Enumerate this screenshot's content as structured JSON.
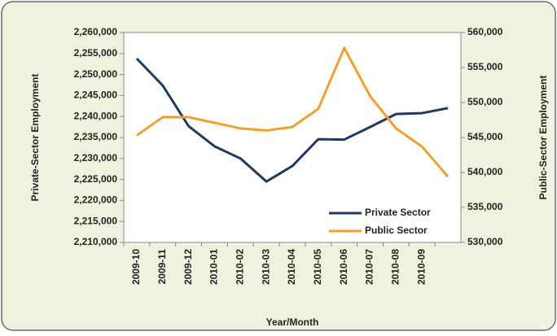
{
  "chart_data": {
    "type": "line",
    "xlabel": "Year/Month",
    "ylabel": "Private-Sector Employment",
    "y2label": "Public-Sector Employment",
    "categories": [
      "2009-10",
      "2009-11",
      "2009-12",
      "2010-01",
      "2010-02",
      "2010-03",
      "2010-04",
      "2010-05",
      "2010-06",
      "2010-07",
      "2010-08",
      "2010-09",
      null
    ],
    "series": [
      {
        "name": "Private Sector",
        "color": "#1f3a60",
        "values": [
          2253800,
          2247400,
          2237700,
          2232900,
          2230000,
          2224500,
          2228200,
          2234600,
          2234500,
          2237500,
          2240600,
          2240800,
          2242000
        ]
      },
      {
        "name": "Public Sector",
        "color": "#f0a030",
        "axis": "y2",
        "values": [
          545300,
          547900,
          547900,
          547100,
          546300,
          546000,
          546500,
          549100,
          557800,
          550900,
          546300,
          543700,
          539400
        ]
      }
    ],
    "ylim": [
      2210000,
      2260000
    ],
    "yticks": [
      {
        "value": 2210000,
        "label": "2,210,000"
      },
      {
        "value": 2215000,
        "label": "2,215,000"
      },
      {
        "value": 2220000,
        "label": "2,220,000"
      },
      {
        "value": 2225000,
        "label": "2,225,000"
      },
      {
        "value": 2230000,
        "label": "2,230,000"
      },
      {
        "value": 2235000,
        "label": "2,235,000"
      },
      {
        "value": 2240000,
        "label": "2,240,000"
      },
      {
        "value": 2245000,
        "label": "2,245,000"
      },
      {
        "value": 2250000,
        "label": "2,250,000"
      },
      {
        "value": 2255000,
        "label": "2,255,000"
      },
      {
        "value": 2260000,
        "label": "2,260,000"
      }
    ],
    "y2lim": [
      530000,
      560000
    ],
    "y2ticks": [
      {
        "value": 530000,
        "label": "530,000"
      },
      {
        "value": 535000,
        "label": "535,000"
      },
      {
        "value": 540000,
        "label": "540,000"
      },
      {
        "value": 545000,
        "label": "545,000"
      },
      {
        "value": 550000,
        "label": "550,000"
      },
      {
        "value": 555000,
        "label": "555,000"
      },
      {
        "value": 560000,
        "label": "560,000"
      }
    ],
    "grid": false,
    "legend": "lower right"
  }
}
